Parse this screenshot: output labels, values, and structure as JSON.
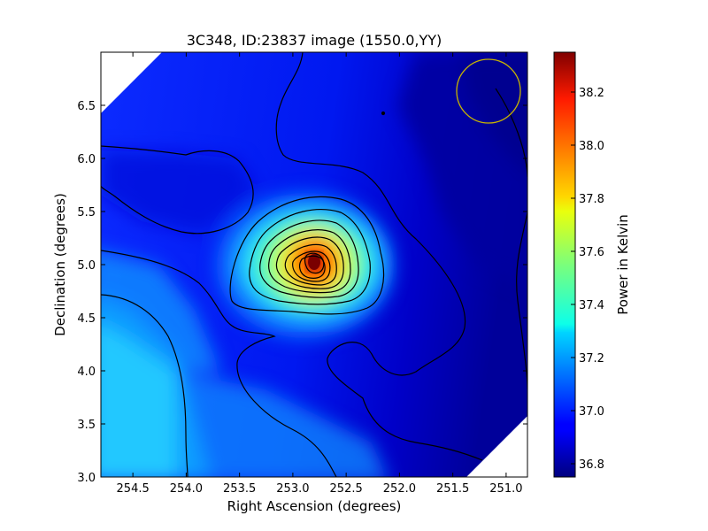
{
  "chart_data": {
    "type": "heatmap",
    "title": "3C348, ID:23837 image (1550.0,YY)",
    "xlabel": "Right Ascension (degrees)",
    "ylabel": "Declination (degrees)",
    "colorbar_label": "Power in Kelvin",
    "colormap": "jet",
    "xlim": [
      254.8,
      250.8
    ],
    "ylim": [
      3.0,
      7.0
    ],
    "x_ticks": [
      254.5,
      254.0,
      253.5,
      253.0,
      252.5,
      252.0,
      251.5,
      251.0
    ],
    "x_tick_labels": [
      "254.5",
      "254.0",
      "253.5",
      "253.0",
      "252.5",
      "252.0",
      "251.5",
      "251.0"
    ],
    "y_ticks": [
      3.0,
      3.5,
      4.0,
      4.5,
      5.0,
      5.5,
      6.0,
      6.5
    ],
    "y_tick_labels": [
      "3.0",
      "3.5",
      "4.0",
      "4.5",
      "5.0",
      "5.5",
      "6.0",
      "6.5"
    ],
    "colorbar_range": [
      36.75,
      38.35
    ],
    "colorbar_ticks": [
      36.8,
      37.0,
      37.2,
      37.4,
      37.6,
      37.8,
      38.0,
      38.2
    ],
    "colorbar_tick_labels": [
      "36.8",
      "37.0",
      "37.2",
      "37.4",
      "37.6",
      "37.8",
      "38.0",
      "38.2"
    ],
    "peak": {
      "ra": 252.78,
      "dec": 5.0,
      "value": 38.35
    },
    "background_level": 36.95,
    "beam_circle": {
      "ra": 251.15,
      "dec": 6.63,
      "radius_deg": 0.3,
      "color": "#c8b400"
    },
    "contour_color": "#000000"
  }
}
